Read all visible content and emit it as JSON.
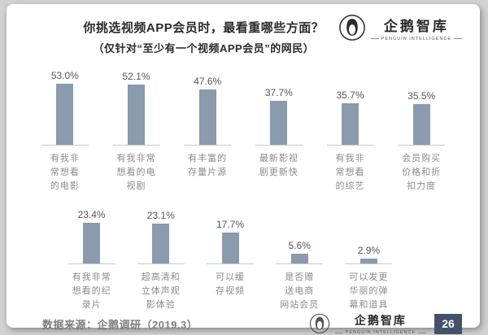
{
  "header": {
    "title_line1": "你挑选视频APP会员时，最看重哪些方面？",
    "title_line2": "（仅针对“至少有一个视频APP会员”的网民）"
  },
  "logo": {
    "name": "企鹅智库",
    "subtitle": "PENGUIN INTELLIGENCE"
  },
  "footer": {
    "source": "数据来源：企鹅调研（2019.3）",
    "page_number": "26"
  },
  "chart_data": {
    "type": "bar",
    "title": "你挑选视频APP会员时，最看重哪些方面？（仅针对“至少有一个视频APP会员”的网民）",
    "unit": "%",
    "bar_color": "#8b9aad",
    "legend": false,
    "grid": false,
    "rows": [
      {
        "categories": [
          "有我非常想看的电影",
          "有我非常想看的电视剧",
          "有丰富的存量片源",
          "最新影视剧更新快",
          "有我非常想看的综艺",
          "会员购买价格和折扣力度"
        ],
        "labels": [
          "有我非\n常想看\n的电影",
          "有我非常\n想看的电\n视剧",
          "有丰富的\n存量片源",
          "最新影视\n剧更新快",
          "有我非\n常想看\n的综艺",
          "会员购买\n价格和折\n扣力度"
        ],
        "values": [
          53.0,
          52.1,
          47.6,
          37.7,
          35.7,
          35.5
        ]
      },
      {
        "categories": [
          "有我非常想看的纪录片",
          "超高清和立体声观影体验",
          "可以缓存视频",
          "是否赠送电商网站会员",
          "可以发更华丽的弹幕和道具"
        ],
        "labels": [
          "有我非常\n想看的纪\n录片",
          "超高清和\n立体声观\n影体验",
          "可以缓\n存视频",
          "是否赠\n送电商\n网站会员",
          "可以发更\n华丽的弹\n幕和道具"
        ],
        "values": [
          23.4,
          23.1,
          17.7,
          5.6,
          2.9
        ]
      }
    ]
  }
}
